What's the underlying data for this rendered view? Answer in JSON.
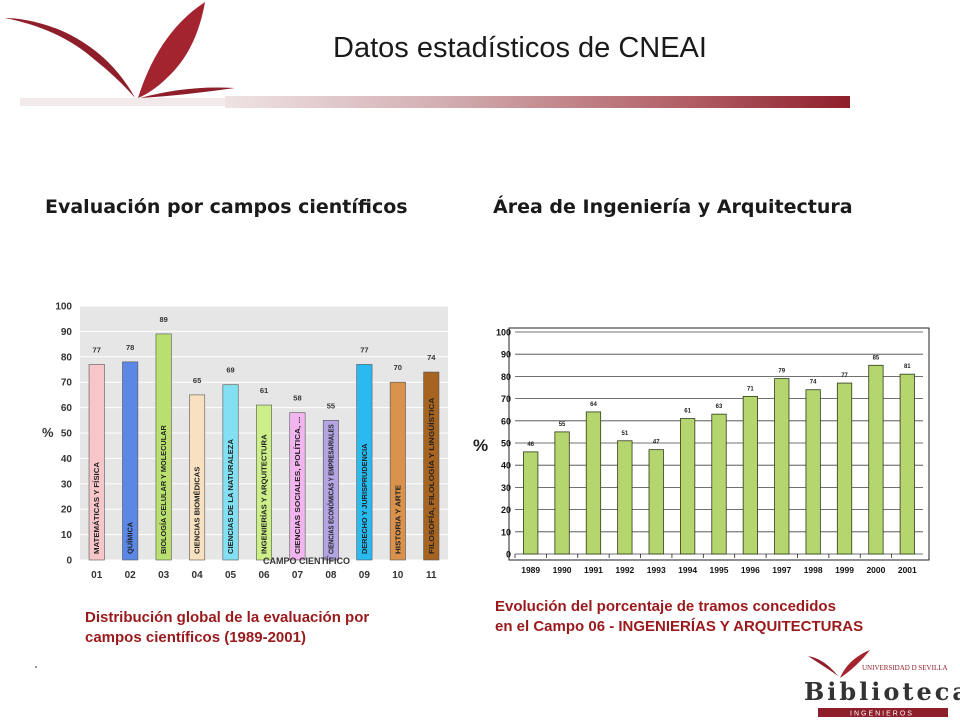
{
  "slide": {
    "title": "Datos estadísticos de CNEAI",
    "left_heading": "Evaluación por campos científicos",
    "right_heading": "Área de Ingeniería y Arquitectura",
    "left_caption_line1": "Distribución global de la evaluación por",
    "left_caption_line2": "campos científicos (1989-2001)",
    "right_caption_line1": "Evolución del porcentaje de tramos concedidos",
    "right_caption_line2": "en el Campo 06 - INGENIERÍAS Y ARQUITECTURAS"
  },
  "logo": {
    "line1": "UNIVERSIDAD D SEVILLA",
    "line2": "Biblioteca",
    "line3": "INGENIEROS"
  },
  "colors": {
    "brand": "#8e1f2a",
    "caption": "#9a1a1c",
    "bar_green": "#b5d56e"
  },
  "chart_data": [
    {
      "type": "bar",
      "title": "",
      "xlabel": "CAMPO CIENTÍFICO",
      "ylabel": "%",
      "ylim": [
        0,
        100
      ],
      "yticks": [
        0,
        10,
        20,
        30,
        40,
        50,
        60,
        70,
        80,
        90,
        100
      ],
      "grid": true,
      "categories": [
        "01",
        "02",
        "03",
        "04",
        "05",
        "06",
        "07",
        "08",
        "09",
        "10",
        "11"
      ],
      "values": [
        77,
        78,
        89,
        65,
        69,
        61,
        58,
        55,
        77,
        70,
        74
      ],
      "bar_labels": [
        "MATEMÁTICAS Y FÍSICA",
        "QUÍMICA",
        "BIOLOGÍA CELULAR Y MOLECULAR",
        "CIENCIAS BIOMÉDICAS",
        "CIENCIAS DE LA NATURALEZA",
        "INGENIERÍAS Y ARQUITECTURA",
        "CIENCIAS SOCIALES, POLÍTICA, ...",
        "CIENCIAS ECONÓMICAS Y EMPRESARIALES",
        "DERECHO Y JURISPRUDENCIA",
        "HISTORIA Y ARTE",
        "FILOSOFÍA, FILOLOGÍA Y LINGÜÍSTICA"
      ],
      "bar_colors": [
        "#f6c6c9",
        "#5b87e6",
        "#b9df6f",
        "#f8e1bf",
        "#83e0f2",
        "#cdef8a",
        "#f3b5f0",
        "#b3a4e2",
        "#28baf0",
        "#d9914c",
        "#a76421"
      ]
    },
    {
      "type": "bar",
      "title": "",
      "xlabel": "",
      "ylabel": "%",
      "ylim": [
        0,
        100
      ],
      "yticks": [
        0,
        10,
        20,
        30,
        40,
        50,
        60,
        70,
        80,
        90,
        100
      ],
      "grid": true,
      "categories": [
        "1989",
        "1990",
        "1991",
        "1992",
        "1993",
        "1994",
        "1995",
        "1996",
        "1997",
        "1998",
        "1999",
        "2000",
        "2001"
      ],
      "values": [
        46,
        55,
        64,
        51,
        47,
        61,
        63,
        71,
        79,
        74,
        77,
        85,
        81
      ]
    }
  ]
}
